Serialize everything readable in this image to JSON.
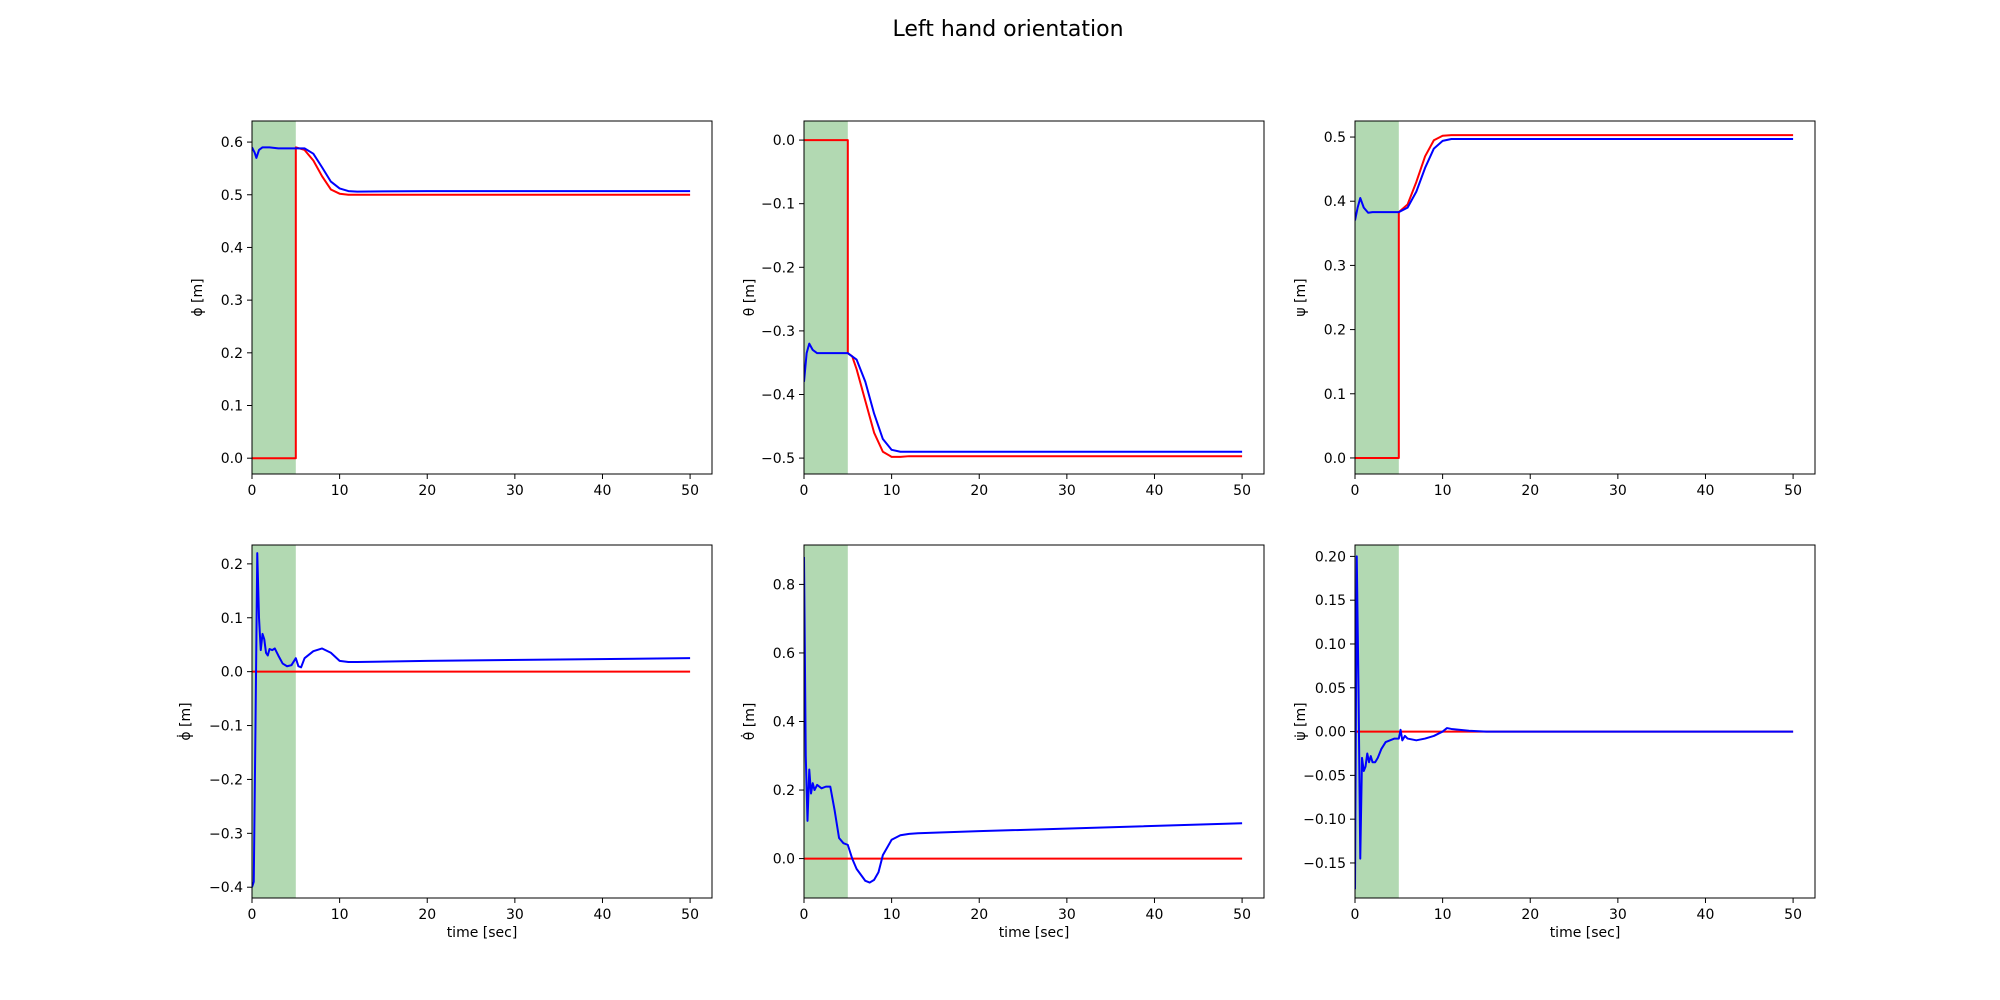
{
  "figure": {
    "title": "Left hand orientation"
  },
  "chart_data": [
    {
      "type": "line",
      "ylabel": "ϕ [m]",
      "xlabel": "",
      "xlim": [
        0,
        52.5
      ],
      "ylim": [
        -0.03,
        0.64
      ],
      "xticks": [
        0,
        10,
        20,
        30,
        40,
        50
      ],
      "yticks": [
        0.0,
        0.1,
        0.2,
        0.3,
        0.4,
        0.5,
        0.6
      ],
      "ytick_labels": [
        "0.0",
        "0.1",
        "0.2",
        "0.3",
        "0.4",
        "0.5",
        "0.6"
      ],
      "shaded_x": [
        0,
        5
      ],
      "series": [
        {
          "color": "#ff0000",
          "x": [
            0,
            5,
            5,
            6,
            7,
            8,
            9,
            10,
            11,
            12,
            50
          ],
          "y": [
            0,
            0,
            0.59,
            0.585,
            0.565,
            0.535,
            0.51,
            0.502,
            0.5,
            0.5,
            0.5
          ]
        },
        {
          "color": "#0000ff",
          "x": [
            0,
            0.3,
            0.5,
            0.8,
            1.2,
            2,
            3,
            5,
            6,
            7,
            8,
            9,
            10,
            11,
            12,
            20,
            50
          ],
          "y": [
            0.59,
            0.58,
            0.57,
            0.585,
            0.59,
            0.59,
            0.588,
            0.588,
            0.588,
            0.578,
            0.552,
            0.525,
            0.512,
            0.507,
            0.506,
            0.507,
            0.507
          ]
        }
      ]
    },
    {
      "type": "line",
      "ylabel": "θ [m]",
      "xlabel": "",
      "xlim": [
        0,
        52.5
      ],
      "ylim": [
        -0.525,
        0.03
      ],
      "xticks": [
        0,
        10,
        20,
        30,
        40,
        50
      ],
      "yticks": [
        0.0,
        -0.1,
        -0.2,
        -0.3,
        -0.4,
        -0.5
      ],
      "ytick_labels": [
        "0.0",
        "−0.1",
        "−0.2",
        "−0.3",
        "−0.4",
        "−0.5"
      ],
      "shaded_x": [
        0,
        5
      ],
      "series": [
        {
          "color": "#ff0000",
          "x": [
            0,
            5,
            5,
            5.5,
            6,
            7,
            8,
            9,
            10,
            11,
            12,
            50
          ],
          "y": [
            0,
            0,
            -0.335,
            -0.34,
            -0.36,
            -0.41,
            -0.46,
            -0.49,
            -0.498,
            -0.498,
            -0.497,
            -0.497
          ]
        },
        {
          "color": "#0000ff",
          "x": [
            0,
            0.3,
            0.6,
            1,
            1.5,
            2,
            3,
            5,
            6,
            7,
            8,
            9,
            10,
            11,
            12,
            20,
            50
          ],
          "y": [
            -0.38,
            -0.335,
            -0.32,
            -0.33,
            -0.335,
            -0.335,
            -0.335,
            -0.335,
            -0.345,
            -0.38,
            -0.43,
            -0.47,
            -0.487,
            -0.49,
            -0.49,
            -0.49,
            -0.49
          ]
        }
      ]
    },
    {
      "type": "line",
      "ylabel": "ψ [m]",
      "xlabel": "",
      "xlim": [
        0,
        52.5
      ],
      "ylim": [
        -0.025,
        0.525
      ],
      "xticks": [
        0,
        10,
        20,
        30,
        40,
        50
      ],
      "yticks": [
        0.0,
        0.1,
        0.2,
        0.3,
        0.4,
        0.5
      ],
      "ytick_labels": [
        "0.0",
        "0.1",
        "0.2",
        "0.3",
        "0.4",
        "0.5"
      ],
      "shaded_x": [
        0,
        5
      ],
      "series": [
        {
          "color": "#ff0000",
          "x": [
            0,
            5,
            5,
            6,
            7,
            8,
            9,
            10,
            11,
            12,
            50
          ],
          "y": [
            0,
            0,
            0.383,
            0.395,
            0.43,
            0.47,
            0.495,
            0.502,
            0.503,
            0.503,
            0.503
          ]
        },
        {
          "color": "#0000ff",
          "x": [
            0,
            0.3,
            0.6,
            1,
            1.5,
            2,
            3,
            5,
            6,
            7,
            8,
            9,
            10,
            11,
            12,
            20,
            50
          ],
          "y": [
            0.37,
            0.39,
            0.405,
            0.39,
            0.382,
            0.383,
            0.383,
            0.383,
            0.39,
            0.415,
            0.452,
            0.482,
            0.494,
            0.497,
            0.497,
            0.497,
            0.497
          ]
        }
      ]
    },
    {
      "type": "line",
      "ylabel": "ϕ̇ [m]",
      "xlabel": "time [sec]",
      "xlim": [
        0,
        52.5
      ],
      "ylim": [
        -0.42,
        0.235
      ],
      "xticks": [
        0,
        10,
        20,
        30,
        40,
        50
      ],
      "yticks": [
        0.2,
        0.1,
        0.0,
        -0.1,
        -0.2,
        -0.3,
        -0.4
      ],
      "ytick_labels": [
        "0.2",
        "0.1",
        "0.0",
        "−0.1",
        "−0.2",
        "−0.3",
        "−0.4"
      ],
      "shaded_x": [
        0,
        5
      ],
      "series": [
        {
          "color": "#ff0000",
          "x": [
            0,
            50
          ],
          "y": [
            0,
            0
          ]
        },
        {
          "color": "#0000ff",
          "x": [
            0,
            0.2,
            0.4,
            0.6,
            0.8,
            1.0,
            1.2,
            1.4,
            1.6,
            1.8,
            2.0,
            2.3,
            2.6,
            3.0,
            3.5,
            4.0,
            4.5,
            5.0,
            5.3,
            5.6,
            6.0,
            7.0,
            8.0,
            9.0,
            10.0,
            11.0,
            12.0,
            20,
            50
          ],
          "y": [
            -0.4,
            -0.39,
            -0.1,
            0.22,
            0.1,
            0.04,
            0.07,
            0.06,
            0.035,
            0.03,
            0.042,
            0.04,
            0.043,
            0.03,
            0.015,
            0.01,
            0.012,
            0.025,
            0.01,
            0.008,
            0.025,
            0.038,
            0.043,
            0.035,
            0.02,
            0.018,
            0.018,
            0.02,
            0.025
          ]
        }
      ]
    },
    {
      "type": "line",
      "ylabel": "θ̇ [m]",
      "xlabel": "time [sec]",
      "xlim": [
        0,
        52.5
      ],
      "ylim": [
        -0.115,
        0.915
      ],
      "xticks": [
        0,
        10,
        20,
        30,
        40,
        50
      ],
      "yticks": [
        0.0,
        0.2,
        0.4,
        0.6,
        0.8
      ],
      "ytick_labels": [
        "0.0",
        "0.2",
        "0.4",
        "0.6",
        "0.8"
      ],
      "shaded_x": [
        0,
        5
      ],
      "series": [
        {
          "color": "#ff0000",
          "x": [
            0,
            50
          ],
          "y": [
            0,
            0
          ]
        },
        {
          "color": "#0000ff",
          "x": [
            0,
            0.2,
            0.4,
            0.6,
            0.8,
            1.0,
            1.2,
            1.5,
            2.0,
            2.5,
            3.0,
            3.5,
            4.0,
            4.5,
            5.0,
            5.5,
            6.0,
            7.0,
            7.5,
            8.0,
            8.5,
            9.0,
            10.0,
            11.0,
            12.0,
            13.0,
            20,
            50
          ],
          "y": [
            0.88,
            0.3,
            0.11,
            0.26,
            0.19,
            0.22,
            0.2,
            0.215,
            0.205,
            0.21,
            0.21,
            0.14,
            0.06,
            0.045,
            0.04,
            0.0,
            -0.03,
            -0.065,
            -0.07,
            -0.062,
            -0.04,
            0.01,
            0.055,
            0.068,
            0.072,
            0.074,
            0.08,
            0.103
          ]
        }
      ]
    },
    {
      "type": "line",
      "ylabel": "ψ̇ [m]",
      "xlabel": "time [sec]",
      "xlim": [
        0,
        52.5
      ],
      "ylim": [
        -0.19,
        0.213
      ],
      "xticks": [
        0,
        10,
        20,
        30,
        40,
        50
      ],
      "yticks": [
        0.2,
        0.15,
        0.1,
        0.05,
        0.0,
        -0.05,
        -0.1,
        -0.15
      ],
      "ytick_labels": [
        "0.20",
        "0.15",
        "0.10",
        "0.05",
        "0.00",
        "−0.05",
        "−0.10",
        "−0.15"
      ],
      "shaded_x": [
        0,
        5
      ],
      "series": [
        {
          "color": "#ff0000",
          "x": [
            0,
            50
          ],
          "y": [
            0,
            0
          ]
        },
        {
          "color": "#0000ff",
          "x": [
            0,
            0.2,
            0.4,
            0.6,
            0.8,
            1.0,
            1.2,
            1.4,
            1.6,
            1.8,
            2.0,
            2.3,
            2.6,
            3.0,
            3.5,
            4.0,
            4.5,
            5.0,
            5.2,
            5.4,
            5.7,
            6.0,
            7.0,
            8.0,
            9.0,
            10.0,
            10.5,
            11.0,
            12.0,
            13.0,
            15,
            50
          ],
          "y": [
            -0.18,
            0.2,
            0.05,
            -0.145,
            -0.03,
            -0.045,
            -0.04,
            -0.025,
            -0.035,
            -0.028,
            -0.035,
            -0.035,
            -0.03,
            -0.02,
            -0.012,
            -0.01,
            -0.008,
            -0.008,
            0.002,
            -0.01,
            -0.005,
            -0.008,
            -0.01,
            -0.008,
            -0.005,
            0.0,
            0.004,
            0.003,
            0.002,
            0.001,
            0.0,
            0.0
          ]
        }
      ]
    }
  ]
}
